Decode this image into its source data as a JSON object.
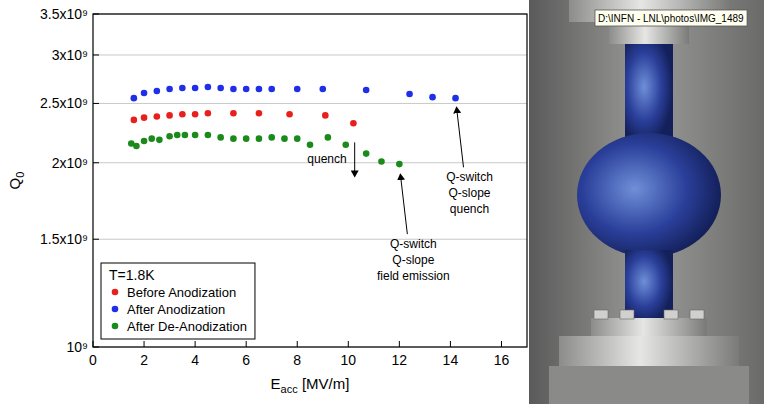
{
  "chart_data": {
    "type": "scatter",
    "x_label": "Eacc [MV/m]",
    "y_label": "Q0",
    "log": "y",
    "grid": true,
    "legend": "lower left",
    "legend_title": "T=1.8K",
    "marker": "circle",
    "xlim": [
      0,
      17
    ],
    "xticks": [
      0,
      2,
      4,
      6,
      8,
      10,
      12,
      14,
      16
    ],
    "ylim": [
      1000000000,
      3500000000
    ],
    "yticks": [
      {
        "value": 1000000000,
        "label": "10⁹"
      },
      {
        "value": 1500000000,
        "label": "1.5x10⁹"
      },
      {
        "value": 2000000000,
        "label": "2x10⁹"
      },
      {
        "value": 2500000000,
        "label": "2.5x10⁹"
      },
      {
        "value": 3000000000,
        "label": "3x10⁹"
      },
      {
        "value": 3500000000,
        "label": "3.5x10⁹"
      }
    ],
    "series": [
      {
        "name": "Before Anodization",
        "color": "#e8201c",
        "x": [
          1.6,
          2.0,
          2.5,
          3.0,
          3.5,
          4.0,
          4.5,
          5.5,
          6.5,
          7.7,
          9.1,
          10.2
        ],
        "values": [
          2350000000,
          2370000000,
          2380000000,
          2390000000,
          2400000000,
          2400000000,
          2410000000,
          2410000000,
          2410000000,
          2400000000,
          2390000000,
          2320000000
        ]
      },
      {
        "name": "After Anodization",
        "color": "#1f2fe8",
        "x": [
          1.6,
          2.0,
          2.5,
          3.0,
          3.5,
          4.0,
          4.5,
          5.0,
          5.5,
          6.0,
          6.5,
          7.0,
          8.0,
          9.0,
          10.7,
          12.4,
          13.3,
          14.2
        ],
        "values": [
          2550000000,
          2600000000,
          2620000000,
          2640000000,
          2650000000,
          2650000000,
          2660000000,
          2650000000,
          2640000000,
          2640000000,
          2640000000,
          2640000000,
          2640000000,
          2640000000,
          2630000000,
          2590000000,
          2560000000,
          2550000000
        ]
      },
      {
        "name": "After De-Anodization",
        "color": "#1a8a1a",
        "x": [
          1.5,
          1.7,
          2.0,
          2.3,
          2.6,
          3.0,
          3.3,
          3.6,
          4.0,
          4.5,
          5.0,
          5.5,
          6.0,
          6.5,
          7.0,
          7.5,
          8.0,
          8.5,
          9.2,
          9.9,
          10.7,
          11.3,
          12.0
        ],
        "values": [
          2150000000,
          2130000000,
          2170000000,
          2190000000,
          2180000000,
          2210000000,
          2220000000,
          2220000000,
          2220000000,
          2220000000,
          2200000000,
          2190000000,
          2190000000,
          2190000000,
          2200000000,
          2190000000,
          2190000000,
          2140000000,
          2200000000,
          2140000000,
          2070000000,
          2010000000,
          1990000000
        ]
      }
    ],
    "annotations": [
      {
        "text": "quench",
        "x": 10.25,
        "y": 1900000000
      },
      {
        "text": "Q-switch\nQ-slope\nquench",
        "x": 14.2,
        "y": 2520000000
      },
      {
        "text": "Q-switch\nQ-slope\nfield emission",
        "x": 12.0,
        "y": 1960000000
      }
    ]
  },
  "photo": {
    "tooltip": "D:\\INFN - LNL\\photos\\IMG_1489"
  }
}
